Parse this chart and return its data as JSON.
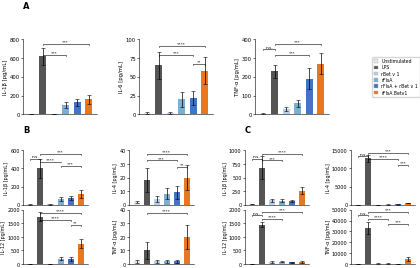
{
  "colors": {
    "unstimulated": "#e8e8e8",
    "LPS": "#555555",
    "rBetv1": "#b8cfe8",
    "rFlsA": "#7bafd4",
    "rFlsA_rBetv1": "#4472c4",
    "rFlsA_Betv1": "#e87722"
  },
  "legend_labels": [
    "Unstimulated",
    "LPS",
    "rBet v 1",
    "rFlsA",
    "rFlsA + rBet v 1",
    "rFlsA.Betv1"
  ],
  "panel_A": {
    "IL1b": {
      "ylabel": "IL-1β [pg/mL]",
      "ylim": [
        0,
        800
      ],
      "yticks": [
        0,
        200,
        400,
        600,
        800
      ],
      "values": [
        5,
        620,
        5,
        100,
        130,
        160
      ],
      "errors": [
        2,
        90,
        2,
        35,
        35,
        45
      ]
    },
    "IL6": {
      "ylabel": "IL-6 [pg/mL]",
      "ylim": [
        0,
        100
      ],
      "yticks": [
        0,
        25,
        50,
        75,
        100
      ],
      "values": [
        2,
        65,
        2,
        20,
        22,
        58
      ],
      "errors": [
        1,
        18,
        1,
        10,
        9,
        18
      ]
    },
    "TNFa": {
      "ylabel": "TNF-α [pg/mL]",
      "ylim": [
        0,
        400
      ],
      "yticks": [
        0,
        100,
        200,
        300,
        400
      ],
      "values": [
        5,
        230,
        30,
        60,
        190,
        270
      ],
      "errors": [
        2,
        35,
        12,
        18,
        55,
        55
      ]
    }
  },
  "panel_B": {
    "IL1b": {
      "ylabel": "IL-1β [pg/mL]",
      "ylim": [
        0,
        600
      ],
      "yticks": [
        0,
        200,
        400,
        600
      ],
      "values": [
        2,
        400,
        2,
        60,
        75,
        120
      ],
      "errors": [
        1,
        110,
        1,
        20,
        22,
        45
      ]
    },
    "IL4": {
      "ylabel": "IL-4 [pg/mL]",
      "ylim": [
        0,
        40
      ],
      "yticks": [
        0,
        10,
        20,
        30,
        40
      ],
      "values": [
        2,
        18,
        4,
        8,
        9,
        20
      ],
      "errors": [
        1,
        9,
        2,
        4,
        5,
        9
      ]
    },
    "IL12": {
      "ylabel": "IL-12 [pg/mL]",
      "ylim": [
        0,
        2000
      ],
      "yticks": [
        0,
        500,
        1000,
        1500,
        2000
      ],
      "values": [
        2,
        1750,
        2,
        200,
        180,
        750
      ],
      "errors": [
        1,
        160,
        1,
        55,
        60,
        160
      ]
    },
    "TNFa": {
      "ylabel": "TNF-α [pg/mL]",
      "ylim": [
        0,
        40
      ],
      "yticks": [
        0,
        10,
        20,
        30,
        40
      ],
      "values": [
        2,
        10,
        2,
        2,
        2,
        20
      ],
      "errors": [
        1,
        6,
        1,
        1,
        1,
        9
      ]
    }
  },
  "panel_C": {
    "IL1b": {
      "ylabel": "IL-1β [pg/mL]",
      "ylim": [
        0,
        1000
      ],
      "yticks": [
        0,
        250,
        500,
        750,
        1000
      ],
      "values": [
        5,
        680,
        80,
        75,
        70,
        260
      ],
      "errors": [
        2,
        210,
        25,
        22,
        22,
        65
      ]
    },
    "IL4": {
      "ylabel": "IL-4 [pg/mL]",
      "ylim": [
        0,
        15000
      ],
      "yticks": [
        0,
        5000,
        10000,
        15000
      ],
      "values": [
        5,
        12800,
        20,
        30,
        40,
        420
      ],
      "errors": [
        2,
        900,
        8,
        12,
        12,
        110
      ]
    },
    "IL12": {
      "ylabel": "IL-12 [pg/mL]",
      "ylim": [
        0,
        2000
      ],
      "yticks": [
        0,
        500,
        1000,
        1500,
        2000
      ],
      "values": [
        5,
        1450,
        80,
        90,
        70,
        75
      ],
      "errors": [
        2,
        90,
        28,
        28,
        22,
        22
      ]
    },
    "TNFa": {
      "ylabel": "TNF-α [pg/mL]",
      "ylim": [
        0,
        50000
      ],
      "yticks": [
        0,
        10000,
        20000,
        30000,
        40000,
        50000
      ],
      "values": [
        5,
        33000,
        400,
        400,
        350,
        4500
      ],
      "errors": [
        2,
        5500,
        90,
        90,
        80,
        1600
      ]
    }
  },
  "background": "#ffffff"
}
